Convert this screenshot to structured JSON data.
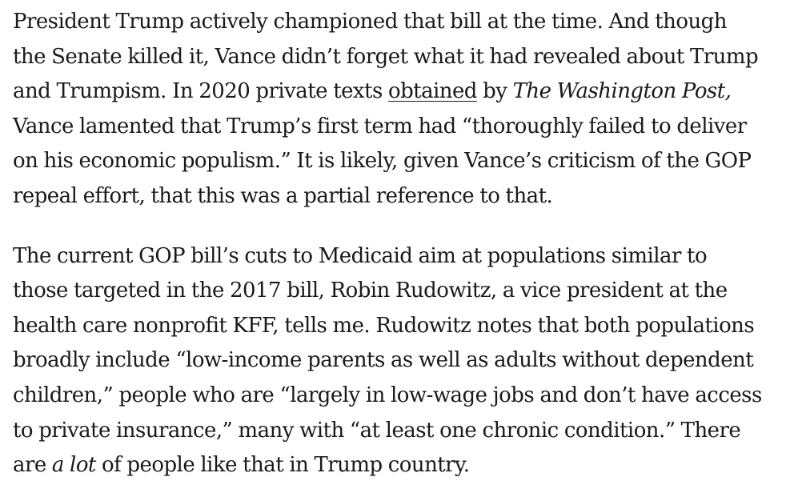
{
  "article": {
    "paragraph1": {
      "line1": "President Trump actively championed that bill at the time. And though",
      "line2": "the Senate killed it, Vance didn’t forget what it had revealed about Trump",
      "line3_before_link": "and Trumpism. In 2020 private texts ",
      "line3_link": "obtained",
      "line3_middle": " by ",
      "line3_publication": "The Washington Post,",
      "line4": "Vance lamented that Trump’s first term had “thoroughly failed to deliver",
      "line5": "on his economic populism.” It is likely, given Vance’s criticism of the GOP",
      "line6": "repeal effort, that this was a partial reference to that."
    },
    "paragraph2": {
      "line1": "The current GOP bill’s cuts to Medicaid aim at populations similar to",
      "line2": "those targeted in the 2017 bill, Robin Rudowitz, a vice president at the",
      "line3": "health care nonprofit KFF, tells me. Rudowitz notes that both populations",
      "line4": "broadly include “low-income parents as well as adults without dependent",
      "line5": "children,” people who are “largely in low-wage jobs and don’t have access",
      "line6": "to private insurance,” many with “at least one chronic condition.” There",
      "line7_before_em": "are ",
      "line7_em": "a lot",
      "line7_after_em": " of people like that in Trump country."
    }
  }
}
